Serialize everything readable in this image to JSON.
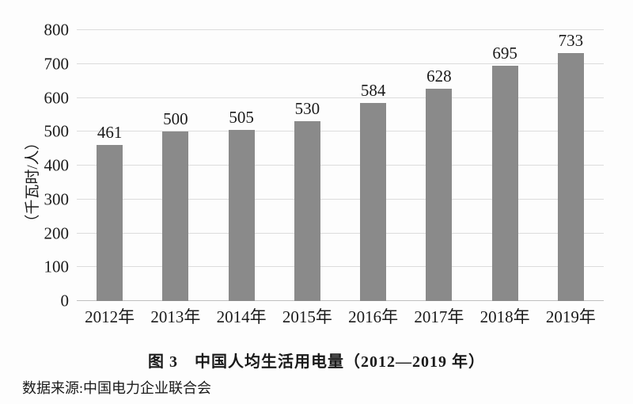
{
  "figure": {
    "title": "图 3　中国人均生活用电量（2012—2019 年）",
    "source_note": "数据来源:中国电力企业联合会"
  },
  "chart_data": {
    "type": "bar",
    "title": "图 3　中国人均生活用电量（2012—2019 年）",
    "categories": [
      "2012年",
      "2013年",
      "2014年",
      "2015年",
      "2016年",
      "2017年",
      "2018年",
      "2019年"
    ],
    "values": [
      461,
      500,
      505,
      530,
      584,
      628,
      695,
      733
    ],
    "xlabel": "",
    "ylabel": "（千瓦时/人）",
    "ylim": [
      0,
      800
    ],
    "y_ticks": [
      0,
      100,
      200,
      300,
      400,
      500,
      600,
      700,
      800
    ],
    "grid": "horizontal-only",
    "legend": "none",
    "bar_color": "#8a8a8a",
    "gridline_color": "#dcdcdc",
    "text_color": "#1a1a1a",
    "value_labels_shown": true,
    "source_note": "数据来源:中国电力企业联合会"
  }
}
